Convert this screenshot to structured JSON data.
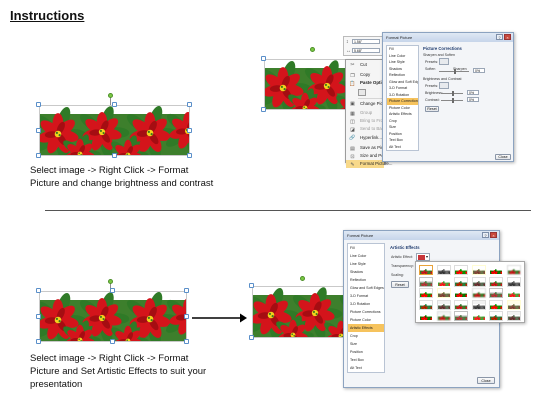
{
  "title": "Instructions",
  "step1": {
    "caption_line1": "Select image -> Right Click -> Format",
    "caption_line2": "Picture and change brightness and contrast"
  },
  "step2": {
    "caption_line1": "Select image -> Right Click -> Format",
    "caption_line2": "Picture and Set Artistic Effects to suit your",
    "caption_line3": "presentation"
  },
  "size_toolbar": {
    "height_value": "1.56\"",
    "width_value": "5.68\""
  },
  "context_menu": {
    "items": [
      {
        "label": "Cut",
        "icon": "scissors-icon",
        "disabled": false
      },
      {
        "label": "Copy",
        "icon": "copy-icon",
        "disabled": false
      },
      {
        "label": "Paste Options:",
        "icon": "paste-icon",
        "disabled": false
      },
      {
        "label": "",
        "icon": "paste-option-icon",
        "disabled": false
      },
      {
        "label": "Change Picture...",
        "icon": "picture-icon",
        "disabled": false
      },
      {
        "label": "Group",
        "icon": "group-icon",
        "disabled": true
      },
      {
        "label": "Bring to Front",
        "icon": "bring-front-icon",
        "disabled": true
      },
      {
        "label": "Send to Back",
        "icon": "send-back-icon",
        "disabled": true
      },
      {
        "label": "Hyperlink...",
        "icon": "hyperlink-icon",
        "disabled": false
      },
      {
        "label": "Save as Picture...",
        "icon": "save-icon",
        "disabled": false
      },
      {
        "label": "Size and Position...",
        "icon": "size-icon",
        "disabled": false
      },
      {
        "label": "Format Picture...",
        "icon": "format-icon",
        "disabled": false
      }
    ]
  },
  "dialog1": {
    "title": "Format Picture",
    "nav": [
      "Fill",
      "Line Color",
      "Line Style",
      "Shadow",
      "Reflection",
      "Glow and Soft Edges",
      "3-D Format",
      "3-D Rotation",
      "Picture Corrections",
      "Picture Color",
      "Artistic Effects",
      "Crop",
      "Size",
      "Position",
      "Text Box",
      "Alt Text"
    ],
    "selected_nav": "Picture Corrections",
    "panel_title": "Picture Corrections",
    "sharpen_header": "Sharpen and Soften",
    "presets_label": "Presets:",
    "soften_label": "Soften",
    "sharpen_label": "Sharpen",
    "sharpen_value": "0%",
    "brightness_header": "Brightness and Contrast",
    "brightness_label": "Brightness:",
    "brightness_value": "0%",
    "contrast_label": "Contrast:",
    "contrast_value": "0%",
    "reset_label": "Reset",
    "close_label": "Close"
  },
  "dialog2": {
    "title": "Format Picture",
    "nav": [
      "Fill",
      "Line Color",
      "Line Style",
      "Shadow",
      "Reflection",
      "Glow and Soft Edges",
      "3-D Format",
      "3-D Rotation",
      "Picture Corrections",
      "Picture Color",
      "Artistic Effects",
      "Crop",
      "Size",
      "Position",
      "Text Box",
      "Alt Text"
    ],
    "selected_nav": "Artistic Effects",
    "panel_title": "Artistic Effects",
    "artistic_effect_label": "Artistic Effect:",
    "transparency_label": "Transparency:",
    "scaling_label": "Scaling:",
    "reset_label": "Reset",
    "close_label": "Close"
  },
  "colors": {
    "flower_red": "#d4141b",
    "leaf_green": "#2f7a27",
    "center_yellow": "#f2d21b",
    "dialog_selection": "#f6c35d",
    "menu_highlight": "#f8d98a"
  }
}
